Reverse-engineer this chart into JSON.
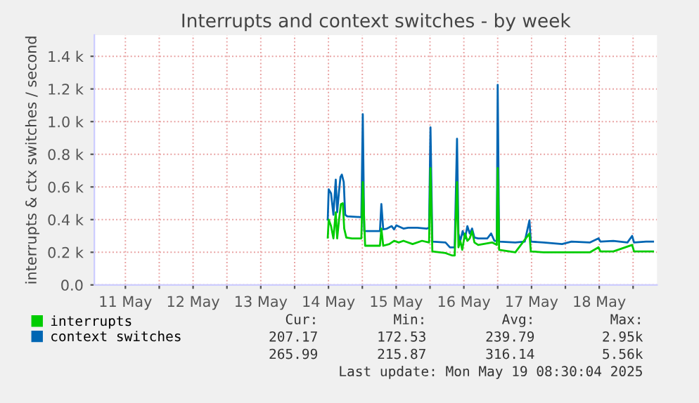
{
  "chart_data": {
    "type": "line",
    "title": "Interrupts and context switches - by week",
    "ylabel": "interrupts & ctx switches / second",
    "xlim": [
      "2025-05-11T01:00",
      "2025-05-19T08:30"
    ],
    "xticks": [
      {
        "value": "2025-05-11T12:00",
        "label": "11 May"
      },
      {
        "value": "2025-05-12T00:00",
        "label": null
      },
      {
        "value": "2025-05-12T12:00",
        "label": "12 May"
      },
      {
        "value": "2025-05-13T00:00",
        "label": null
      },
      {
        "value": "2025-05-13T12:00",
        "label": "13 May"
      },
      {
        "value": "2025-05-14T00:00",
        "label": null
      },
      {
        "value": "2025-05-14T12:00",
        "label": "14 May"
      },
      {
        "value": "2025-05-15T00:00",
        "label": null
      },
      {
        "value": "2025-05-15T12:00",
        "label": "15 May"
      },
      {
        "value": "2025-05-16T00:00",
        "label": null
      },
      {
        "value": "2025-05-16T12:00",
        "label": "16 May"
      },
      {
        "value": "2025-05-17T00:00",
        "label": null
      },
      {
        "value": "2025-05-17T12:00",
        "label": "17 May"
      },
      {
        "value": "2025-05-18T00:00",
        "label": null
      },
      {
        "value": "2025-05-18T12:00",
        "label": "18 May"
      },
      {
        "value": "2025-05-19T00:00",
        "label": null
      }
    ],
    "ylim": [
      0,
      1530
    ],
    "yticks": [
      {
        "value": 0,
        "label": "0.0"
      },
      {
        "value": 200,
        "label": "0.2 k"
      },
      {
        "value": 400,
        "label": "0.4 k"
      },
      {
        "value": 600,
        "label": "0.6 k"
      },
      {
        "value": 800,
        "label": "0.8 k"
      },
      {
        "value": 1000,
        "label": "1.0 k"
      },
      {
        "value": 1200,
        "label": "1.2 k"
      },
      {
        "value": 1400,
        "label": "1.4 k"
      }
    ],
    "grid": true,
    "legend": "bottom",
    "marker": "none",
    "line_style": "solid",
    "series": [
      {
        "name": "interrupts",
        "color": "#00cc00",
        "x": [
          "2025-05-14T11:45",
          "2025-05-14T12:05",
          "2025-05-14T12:55",
          "2025-05-14T13:45",
          "2025-05-14T14:35",
          "2025-05-14T15:05",
          "2025-05-14T15:45",
          "2025-05-14T16:25",
          "2025-05-14T17:05",
          "2025-05-14T17:35",
          "2025-05-14T18:20",
          "2025-05-14T20:20",
          "2025-05-14T23:40",
          "2025-05-15T00:10",
          "2025-05-15T01:00",
          "2025-05-15T06:15",
          "2025-05-15T06:45",
          "2025-05-15T07:25",
          "2025-05-15T09:35",
          "2025-05-15T11:15",
          "2025-05-15T12:55",
          "2025-05-15T14:35",
          "2025-05-15T17:50",
          "2025-05-15T21:10",
          "2025-05-15T23:40",
          "2025-05-16T00:10",
          "2025-05-16T00:50",
          "2025-05-16T05:30",
          "2025-05-16T07:55",
          "2025-05-16T08:45",
          "2025-05-16T09:35",
          "2025-05-16T10:05",
          "2025-05-16T10:45",
          "2025-05-16T11:25",
          "2025-05-16T12:25",
          "2025-05-16T13:15",
          "2025-05-16T14:05",
          "2025-05-16T14:55",
          "2025-05-16T15:45",
          "2025-05-16T17:05",
          "2025-05-16T22:00",
          "2025-05-16T23:40",
          "2025-05-17T00:00",
          "2025-05-17T00:30",
          "2025-05-17T06:15",
          "2025-05-17T11:15",
          "2025-05-17T11:45",
          "2025-05-17T16:15",
          "2025-05-17T22:50",
          "2025-05-18T08:45",
          "2025-05-18T11:45",
          "2025-05-18T12:25",
          "2025-05-18T17:00",
          "2025-05-18T23:40",
          "2025-05-19T00:20",
          "2025-05-19T07:05"
        ],
        "values": [
          290,
          400,
          360,
          285,
          445,
          285,
          400,
          495,
          500,
          345,
          290,
          285,
          285,
          630,
          240,
          240,
          345,
          240,
          250,
          270,
          260,
          270,
          250,
          270,
          260,
          715,
          205,
          195,
          180,
          180,
          630,
          230,
          270,
          215,
          315,
          270,
          285,
          330,
          260,
          245,
          260,
          245,
          715,
          215,
          200,
          315,
          205,
          200,
          200,
          200,
          230,
          205,
          205,
          245,
          205,
          205
        ]
      },
      {
        "name": "context switches",
        "color": "#0066b3",
        "x": [
          "2025-05-14T11:45",
          "2025-05-14T12:05",
          "2025-05-14T12:55",
          "2025-05-14T13:45",
          "2025-05-14T14:35",
          "2025-05-14T15:05",
          "2025-05-14T15:45",
          "2025-05-14T16:15",
          "2025-05-14T16:45",
          "2025-05-14T17:25",
          "2025-05-14T17:55",
          "2025-05-14T18:40",
          "2025-05-14T23:40",
          "2025-05-15T00:10",
          "2025-05-15T00:40",
          "2025-05-15T06:15",
          "2025-05-15T06:45",
          "2025-05-15T07:25",
          "2025-05-15T08:45",
          "2025-05-15T10:25",
          "2025-05-15T11:15",
          "2025-05-15T12:05",
          "2025-05-15T14:35",
          "2025-05-15T16:15",
          "2025-05-15T19:30",
          "2025-05-15T22:50",
          "2025-05-15T23:40",
          "2025-05-16T00:10",
          "2025-05-16T00:50",
          "2025-05-16T05:30",
          "2025-05-16T07:05",
          "2025-05-16T08:45",
          "2025-05-16T09:35",
          "2025-05-16T10:05",
          "2025-05-16T10:45",
          "2025-05-16T11:35",
          "2025-05-16T12:25",
          "2025-05-16T13:15",
          "2025-05-16T14:05",
          "2025-05-16T14:55",
          "2025-05-16T15:45",
          "2025-05-16T17:05",
          "2025-05-16T20:20",
          "2025-05-16T21:40",
          "2025-05-16T22:50",
          "2025-05-16T23:40",
          "2025-05-17T00:00",
          "2025-05-17T00:30",
          "2025-05-17T06:15",
          "2025-05-17T09:35",
          "2025-05-17T11:15",
          "2025-05-17T11:45",
          "2025-05-17T16:15",
          "2025-05-17T22:50",
          "2025-05-18T02:10",
          "2025-05-18T08:45",
          "2025-05-18T11:45",
          "2025-05-18T12:25",
          "2025-05-18T17:00",
          "2025-05-18T22:00",
          "2025-05-18T23:40",
          "2025-05-19T00:20",
          "2025-05-19T04:35",
          "2025-05-19T07:05"
        ],
        "values": [
          400,
          585,
          560,
          430,
          645,
          445,
          575,
          660,
          675,
          630,
          430,
          420,
          415,
          1045,
          330,
          330,
          495,
          340,
          345,
          360,
          340,
          365,
          345,
          350,
          350,
          345,
          350,
          965,
          265,
          260,
          230,
          230,
          895,
          315,
          270,
          330,
          285,
          360,
          315,
          345,
          290,
          285,
          285,
          315,
          270,
          270,
          1225,
          265,
          260,
          265,
          395,
          265,
          260,
          250,
          265,
          260,
          285,
          265,
          270,
          260,
          300,
          260,
          265,
          265
        ]
      }
    ],
    "annotations": [
      "Cur:",
      "Min:",
      "Avg:",
      "Max:",
      "207.17",
      "172.53",
      "239.79",
      "2.95k",
      "265.99",
      "215.87",
      "316.14",
      "5.56k",
      "Last update: Mon May 19 08:30:04 2025"
    ]
  }
}
